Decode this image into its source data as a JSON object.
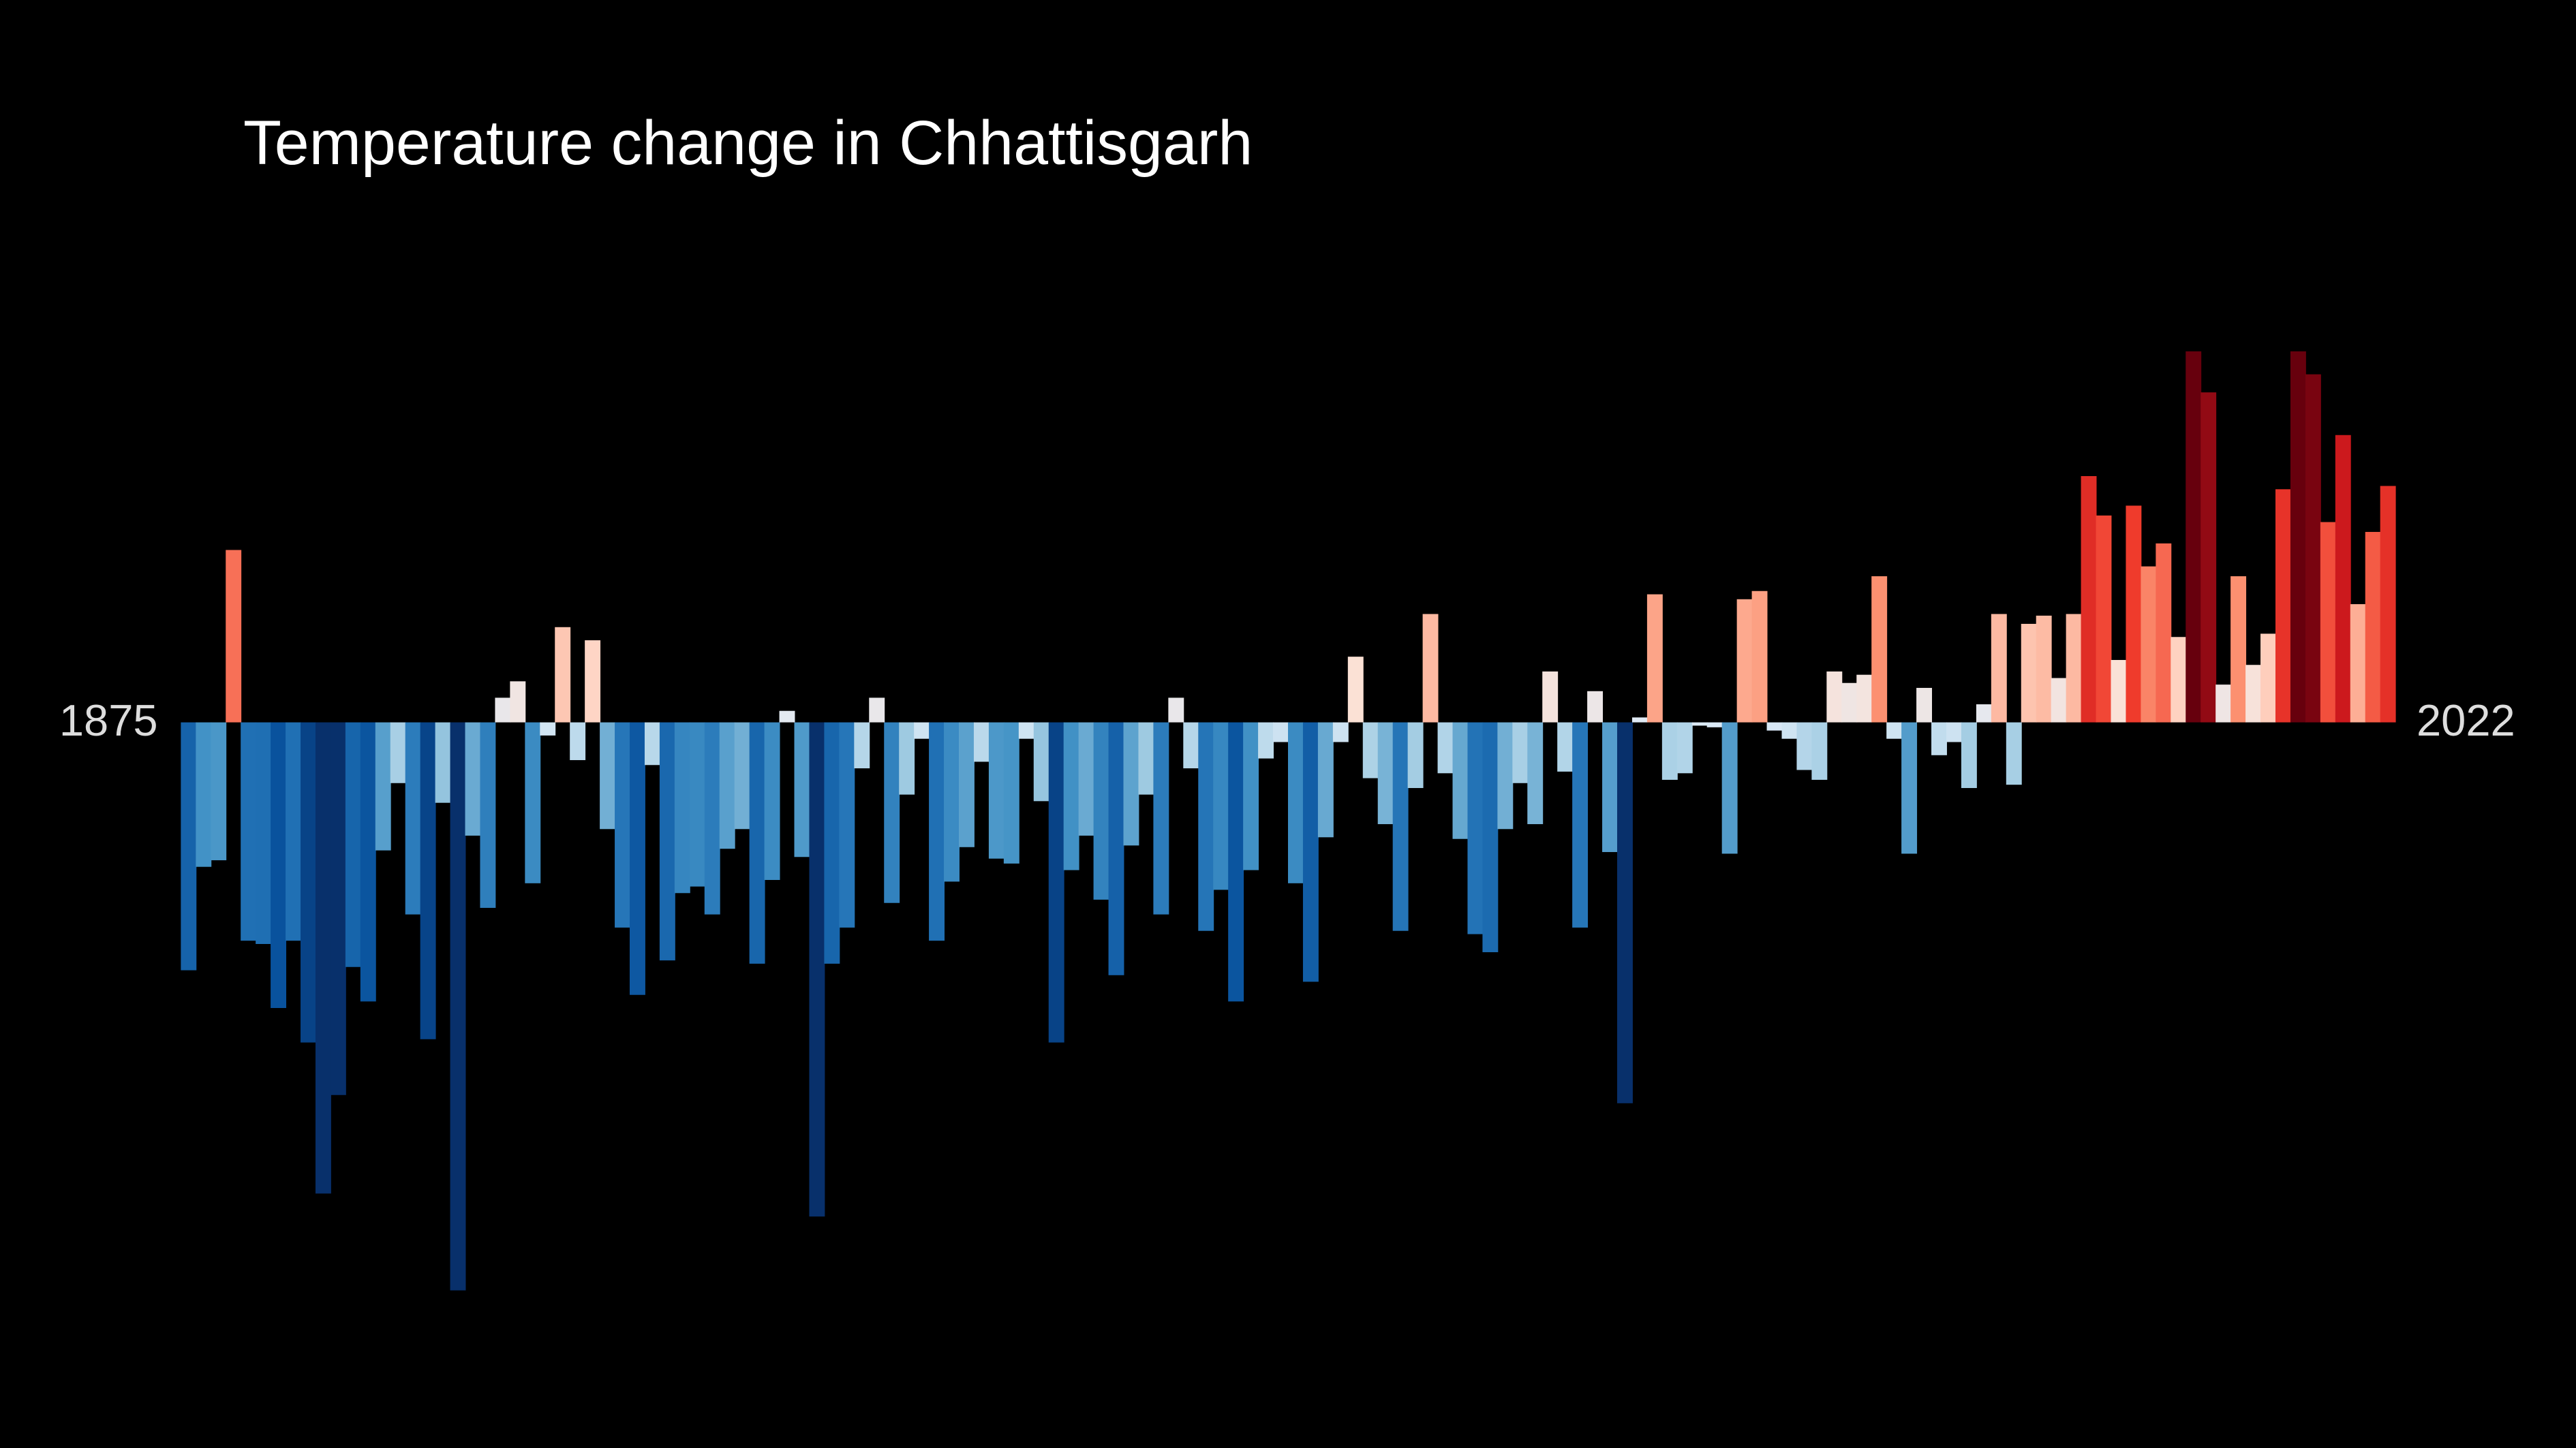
{
  "chart_data": {
    "type": "bar",
    "title": "Temperature change in Chhattisgarh",
    "start_label": "1875",
    "end_label": "2022",
    "values": [
      -1.51,
      -0.88,
      -0.84,
      1.05,
      -1.33,
      -1.35,
      -1.74,
      -1.33,
      -1.95,
      -2.87,
      -2.27,
      -1.49,
      -1.7,
      -0.78,
      -0.37,
      -1.17,
      -1.93,
      -0.49,
      -3.46,
      -0.69,
      -1.13,
      0.15,
      0.25,
      -0.98,
      -0.08,
      0.58,
      -0.23,
      0.5,
      -0.65,
      -1.25,
      -1.66,
      -0.26,
      -1.45,
      -1.04,
      -1.0,
      -1.17,
      -0.77,
      -0.65,
      -1.47,
      -0.96,
      0.07,
      -0.82,
      -3.01,
      -1.47,
      -1.25,
      -0.28,
      0.15,
      -1.1,
      -0.44,
      -0.1,
      -1.33,
      -0.97,
      -0.76,
      -0.24,
      -0.83,
      -0.86,
      -0.1,
      -0.48,
      -1.95,
      -0.9,
      -0.69,
      -1.08,
      -1.54,
      -0.75,
      -0.44,
      -1.17,
      0.15,
      -0.28,
      -1.27,
      -1.02,
      -1.7,
      -0.9,
      -0.22,
      -0.12,
      -0.98,
      -1.58,
      -0.7,
      -0.12,
      0.4,
      -0.34,
      -0.62,
      -1.27,
      -0.4,
      0.66,
      -0.31,
      -0.71,
      -1.29,
      -1.4,
      -0.65,
      -0.37,
      -0.62,
      0.31,
      -0.3,
      -1.25,
      0.19,
      -0.79,
      -2.32,
      0.03,
      0.78,
      -0.35,
      -0.31,
      -0.02,
      -0.03,
      -0.8,
      0.75,
      0.8,
      -0.05,
      -0.1,
      -0.29,
      -0.35,
      0.31,
      0.24,
      0.29,
      0.89,
      -0.1,
      -0.8,
      0.21,
      -0.2,
      -0.12,
      -0.4,
      0.11,
      0.66,
      -0.38,
      0.6,
      0.65,
      0.27,
      0.66,
      1.5,
      1.26,
      0.38,
      1.32,
      0.95,
      1.09,
      0.52,
      2.26,
      2.01,
      0.23,
      0.89,
      0.35,
      0.54,
      1.42,
      2.26,
      2.12,
      1.22,
      1.75,
      0.72,
      1.16,
      1.44
    ],
    "ylim": [
      -4.42,
      4.4
    ],
    "colors": [
      "#08306b",
      "#08519c",
      "#2171b5",
      "#4292c6",
      "#9ecae1",
      "#deebf7",
      "#fee0d2",
      "#fc9272",
      "#ef3b2c",
      "#cb181d",
      "#67000d"
    ],
    "color_range": [
      -2.2,
      2.2
    ]
  }
}
